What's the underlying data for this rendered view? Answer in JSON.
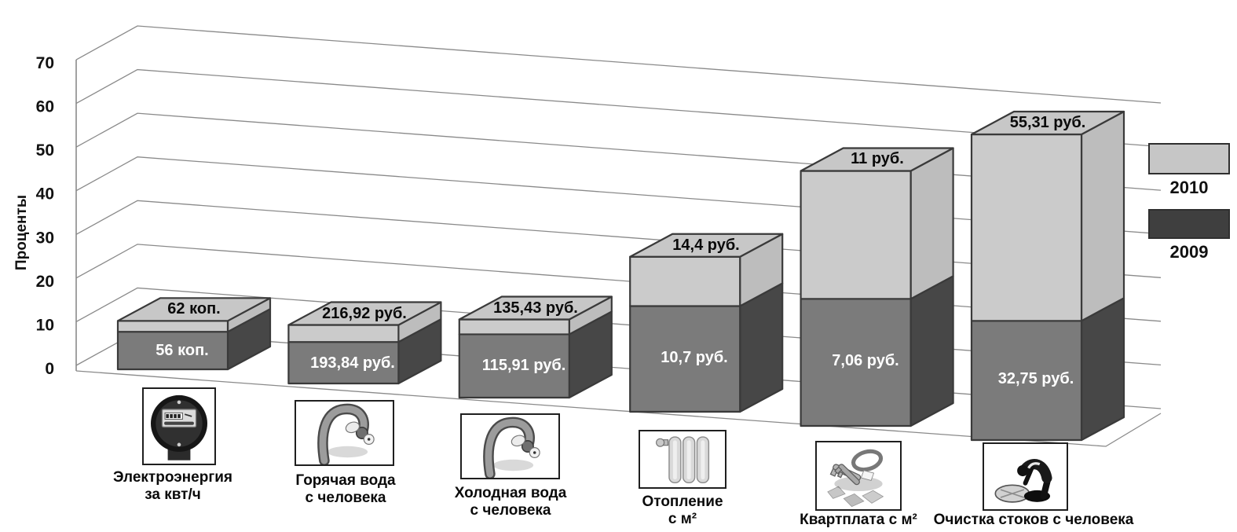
{
  "chart_data": {
    "type": "bar",
    "subtype": "3d-stacked-column",
    "title": "",
    "ylabel": "Проценты",
    "ylim": [
      0,
      70
    ],
    "yticks": [
      0,
      10,
      20,
      30,
      40,
      50,
      60,
      70
    ],
    "grid": true,
    "legend_position": "right",
    "legend": [
      {
        "label": "2010",
        "color": "#c6c6c6",
        "border": "#2f2f2f"
      },
      {
        "label": "2009",
        "color": "#3f3f3f",
        "border": "#2f2f2f"
      }
    ],
    "colors": {
      "bar2009_front": "#7b7b7b",
      "bar2009_side": "#474747",
      "bar2010_front": "#cbcbcb",
      "bar2010_side": "#bdbdbd",
      "bar_top": "#c7c7c7",
      "outline": "#3a3a3a",
      "gridline": "#8a8a8a",
      "label_on_dark": "#ffffff",
      "label_on_light": "#000000"
    },
    "categories": [
      {
        "label_lines": [
          "Электроэнергия",
          "за квт/ч"
        ],
        "icon": "electric-meter-icon",
        "values": {
          "2009": {
            "label": "56 коп.",
            "height_pct": 8.6
          },
          "2010": {
            "label": "62 коп.",
            "height_pct": 2.5
          }
        }
      },
      {
        "label_lines": [
          "Горячая вода",
          "с человека"
        ],
        "icon": "hot-water-tap-icon",
        "values": {
          "2009": {
            "label": "193,84 руб.",
            "height_pct": 9.5
          },
          "2010": {
            "label": "216,92 руб.",
            "height_pct": 3.9
          }
        }
      },
      {
        "label_lines": [
          "Холодная вода",
          "с человека"
        ],
        "icon": "cold-water-tap-icon",
        "values": {
          "2009": {
            "label": "115,91 руб.",
            "height_pct": 14.5
          },
          "2010": {
            "label": "135,43 руб.",
            "height_pct": 3.4
          }
        }
      },
      {
        "label_lines": [
          "Отопление",
          "с м²"
        ],
        "icon": "radiator-icon",
        "values": {
          "2009": {
            "label": "10,7 руб.",
            "height_pct": 24.2
          },
          "2010": {
            "label": "14,4 руб.",
            "height_pct": 11.3
          }
        }
      },
      {
        "label_lines": [
          "Квартплата с м²"
        ],
        "icon": "keys-icon",
        "values": {
          "2009": {
            "label": "7,06 руб.",
            "height_pct": 29.1
          },
          "2010": {
            "label": "11 руб.",
            "height_pct": 29.3
          }
        }
      },
      {
        "label_lines": [
          "Очистка стоков с человека"
        ],
        "icon": "sewage-worker-icon",
        "values": {
          "2009": {
            "label": "32,75 руб.",
            "height_pct": 27.3
          },
          "2010": {
            "label": "55,31 руб.",
            "height_pct": 42.7
          }
        }
      }
    ]
  }
}
